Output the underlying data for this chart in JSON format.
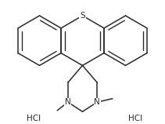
{
  "bg_color": "#ffffff",
  "line_color": "#2a2a2a",
  "text_color": "#2a2a2a",
  "S_label": "S",
  "N_label": "N",
  "HCl_left": "HCl",
  "HCl_right": "HCl",
  "figsize": [
    2.11,
    1.58
  ],
  "dpi": 100,
  "lw": 1.1,
  "font_size": 7.5
}
